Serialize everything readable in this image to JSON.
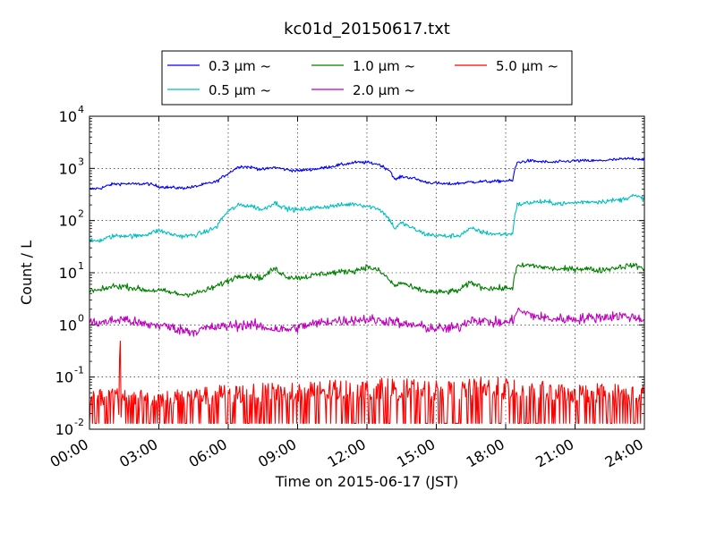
{
  "chart_data": {
    "type": "line",
    "title": "kc01d_20150617.txt",
    "xlabel": "Time on 2015-06-17 (JST)",
    "ylabel": "Count / L",
    "x_unit": "hour of day",
    "xlim": [
      0,
      24
    ],
    "ylim": [
      0.01,
      10000
    ],
    "y_scale": "log",
    "grid": true,
    "legend_position": "top-center, above plot",
    "x_ticks": [
      0,
      3,
      6,
      9,
      12,
      15,
      18,
      21,
      24
    ],
    "x_tick_labels": [
      "00:00",
      "03:00",
      "06:00",
      "09:00",
      "12:00",
      "15:00",
      "18:00",
      "21:00",
      "24:00"
    ],
    "y_ticks": [
      {
        "value": 0.01,
        "base": "10",
        "exp": "-2"
      },
      {
        "value": 0.1,
        "base": "10",
        "exp": "-1"
      },
      {
        "value": 1,
        "base": "10",
        "exp": "0"
      },
      {
        "value": 10,
        "base": "10",
        "exp": "1"
      },
      {
        "value": 100,
        "base": "10",
        "exp": "2"
      },
      {
        "value": 1000,
        "base": "10",
        "exp": "3"
      },
      {
        "value": 10000,
        "base": "10",
        "exp": "4"
      }
    ],
    "series": [
      {
        "name": "0.3 μm ~",
        "color": "#0000ff",
        "noise": 0.03,
        "x": [
          0,
          0.5,
          1,
          1.5,
          2,
          2.5,
          3,
          3.5,
          4,
          4.5,
          5,
          5.5,
          6,
          6.5,
          7,
          7.5,
          8,
          8.5,
          9,
          9.5,
          10,
          10.5,
          11,
          11.5,
          12,
          12.5,
          13,
          13.2,
          13.5,
          14,
          14.5,
          15,
          15.5,
          16,
          16.5,
          17,
          17.5,
          18,
          18.3,
          18.5,
          19,
          19.5,
          20,
          20.5,
          21,
          21.5,
          22,
          22.5,
          23,
          23.5,
          24
        ],
        "values": [
          400,
          420,
          500,
          510,
          500,
          510,
          450,
          430,
          420,
          440,
          500,
          560,
          800,
          1100,
          1050,
          950,
          1050,
          950,
          900,
          950,
          1000,
          1100,
          1200,
          1300,
          1300,
          1200,
          900,
          600,
          700,
          650,
          550,
          520,
          500,
          520,
          550,
          560,
          560,
          580,
          580,
          1300,
          1400,
          1350,
          1300,
          1350,
          1400,
          1400,
          1400,
          1450,
          1500,
          1550,
          1500
        ]
      },
      {
        "name": "0.5 μm ~",
        "color": "#00bfbf",
        "noise": 0.045,
        "x": [
          0,
          0.5,
          1,
          1.5,
          2,
          2.5,
          3,
          3.5,
          4,
          4.5,
          5,
          5.5,
          6,
          6.5,
          7,
          7.5,
          8,
          8.5,
          9,
          9.5,
          10,
          10.5,
          11,
          11.5,
          12,
          12.5,
          13,
          13.2,
          13.5,
          14,
          14.5,
          15,
          15.5,
          16,
          16.5,
          17,
          17.5,
          18,
          18.3,
          18.5,
          19,
          19.5,
          20,
          20.5,
          21,
          21.5,
          22,
          22.5,
          23,
          23.5,
          24
        ],
        "values": [
          40,
          42,
          50,
          52,
          50,
          55,
          65,
          55,
          50,
          52,
          60,
          75,
          150,
          200,
          190,
          160,
          220,
          170,
          160,
          170,
          180,
          190,
          200,
          210,
          190,
          170,
          100,
          70,
          90,
          70,
          55,
          52,
          50,
          52,
          70,
          60,
          55,
          55,
          55,
          200,
          220,
          230,
          220,
          210,
          220,
          230,
          230,
          240,
          250,
          300,
          260
        ]
      },
      {
        "name": "1.0 μm ~",
        "color": "#008000",
        "noise": 0.055,
        "x": [
          0,
          0.5,
          1,
          1.5,
          2,
          2.5,
          3,
          3.5,
          4,
          4.5,
          5,
          5.5,
          6,
          6.5,
          7,
          7.5,
          8,
          8.5,
          9,
          9.5,
          10,
          10.5,
          11,
          11.5,
          12,
          12.5,
          13,
          13.2,
          13.5,
          14,
          14.5,
          15,
          15.5,
          16,
          16.5,
          17,
          17.5,
          18,
          18.3,
          18.5,
          19,
          19.5,
          20,
          20.5,
          21,
          21.5,
          22,
          22.5,
          23,
          23.5,
          24
        ],
        "values": [
          4.5,
          4.6,
          5.5,
          5.5,
          5,
          4.6,
          4.6,
          4.2,
          3.8,
          4,
          4.5,
          5.5,
          7,
          9,
          8.5,
          8,
          12,
          8.5,
          8,
          8.5,
          9.5,
          10,
          10.5,
          11,
          13,
          11,
          7,
          5.5,
          6.5,
          5,
          4.5,
          4.2,
          4.3,
          4.6,
          6.5,
          5.2,
          5,
          5,
          5.2,
          13,
          14,
          13,
          12,
          11.5,
          12,
          12,
          11,
          12,
          13,
          14,
          12
        ]
      },
      {
        "name": "2.0 μm ~",
        "color": "#bf00bf",
        "noise": 0.1,
        "x": [
          0,
          0.5,
          1,
          1.5,
          2,
          2.5,
          3,
          3.5,
          4,
          4.5,
          5,
          5.5,
          6,
          6.5,
          7,
          7.5,
          8,
          8.5,
          9,
          9.5,
          10,
          10.5,
          11,
          11.5,
          12,
          12.5,
          13,
          13.2,
          13.5,
          14,
          14.5,
          15,
          15.5,
          16,
          16.5,
          17,
          17.5,
          18,
          18.3,
          18.5,
          19,
          19.5,
          20,
          20.5,
          21,
          21.5,
          22,
          22.5,
          23,
          23.5,
          24
        ],
        "values": [
          1.1,
          1.1,
          1.2,
          1.3,
          1.1,
          1.0,
          1.0,
          0.9,
          0.8,
          0.75,
          0.85,
          0.9,
          0.95,
          1.0,
          1.0,
          0.9,
          0.85,
          0.8,
          0.9,
          1.0,
          1.1,
          1.2,
          1.2,
          1.25,
          1.3,
          1.2,
          1.2,
          1.2,
          1.0,
          1.0,
          0.9,
          0.85,
          0.85,
          0.9,
          1.3,
          1.2,
          1.1,
          1.1,
          1.2,
          1.9,
          1.6,
          1.4,
          1.3,
          1.3,
          1.3,
          1.35,
          1.4,
          1.45,
          1.5,
          1.4,
          1.3
        ]
      },
      {
        "name": "5.0 μm ~",
        "color": "#ff0000",
        "x": [
          0,
          1,
          1.2,
          1.28,
          1.33,
          1.36,
          1.42,
          1.6,
          2,
          3,
          4,
          5,
          6,
          7,
          8,
          9,
          10,
          11,
          12,
          13,
          14,
          15,
          16,
          17,
          18,
          19,
          20,
          21,
          22,
          23,
          24
        ],
        "values": [
          0.013,
          0.013,
          0.05,
          0.013,
          0.55,
          0.013,
          0.05,
          0.013,
          0.013,
          0.013,
          0.013,
          0.013,
          0.013,
          0.013,
          0.013,
          0.013,
          0.013,
          0.013,
          0.013,
          0.013,
          0.013,
          0.013,
          0.013,
          0.013,
          0.013,
          0.013,
          0.013,
          0.013,
          0.013,
          0.013,
          0.013
        ],
        "upper_envelope": {
          "x": [
            0,
            2,
            3,
            4,
            5,
            6,
            7,
            8,
            9,
            10,
            11,
            12,
            13,
            14,
            15,
            16,
            17,
            18,
            19,
            20,
            21,
            22,
            23,
            24
          ],
          "values": [
            0.06,
            0.06,
            0.055,
            0.06,
            0.065,
            0.075,
            0.075,
            0.08,
            0.08,
            0.085,
            0.09,
            0.09,
            0.1,
            0.09,
            0.085,
            0.085,
            0.1,
            0.1,
            0.09,
            0.08,
            0.075,
            0.08,
            0.075,
            0.07
          ]
        }
      }
    ]
  }
}
